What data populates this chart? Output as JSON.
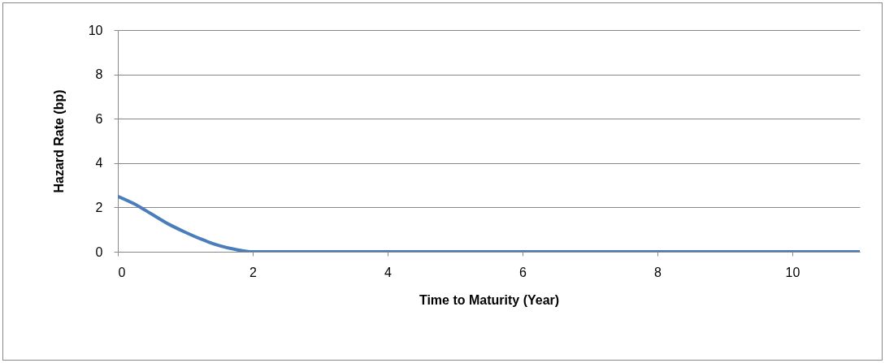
{
  "chart_data": {
    "type": "line",
    "xlabel": "Time to Maturity (Year)",
    "ylabel": "Hazard Rate (bp)",
    "x": [
      0,
      0.25,
      0.5,
      0.75,
      1,
      1.25,
      1.5,
      1.75,
      2,
      2.5,
      3,
      4,
      5,
      6,
      8,
      10,
      11
    ],
    "series": [
      {
        "color": "#4a7ebb",
        "values": [
          2.5,
          2.15,
          1.7,
          1.25,
          0.88,
          0.55,
          0.28,
          0.1,
          0,
          0,
          0,
          0,
          0,
          0,
          0,
          0,
          0
        ]
      }
    ],
    "xlim": [
      0,
      11
    ],
    "xticks": [
      0,
      2,
      4,
      6,
      8,
      10
    ],
    "ylim": [
      0,
      10
    ],
    "yticks": [
      0,
      2,
      4,
      6,
      8,
      10
    ],
    "grid": "y",
    "legend": false,
    "marker": "none",
    "line_style": "solid"
  }
}
